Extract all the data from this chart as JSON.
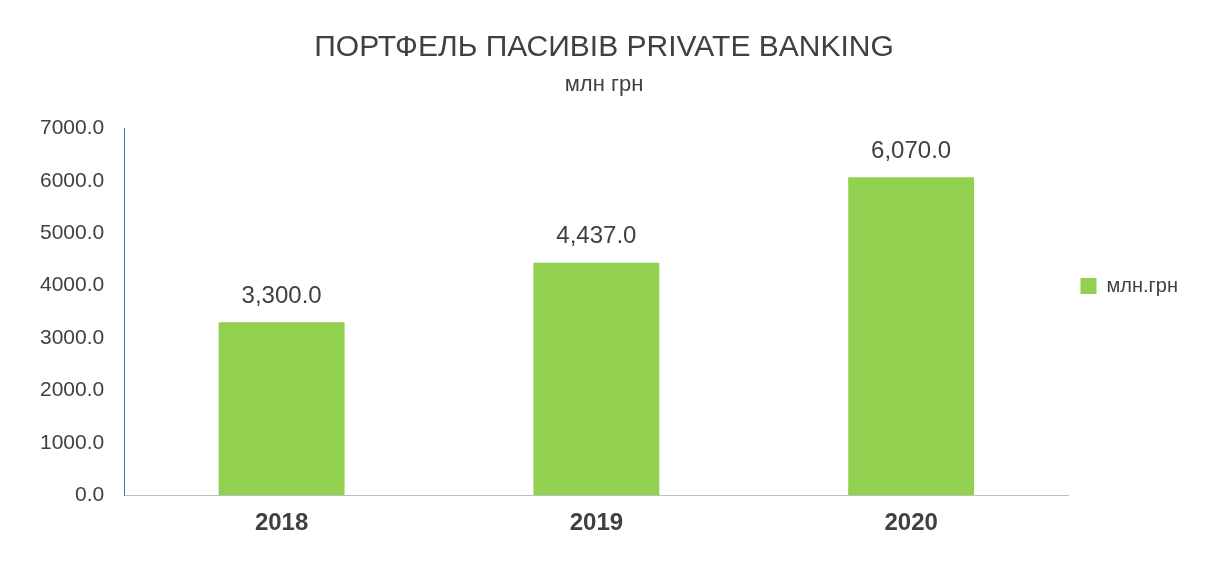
{
  "chart_data": {
    "type": "bar",
    "title": "ПОРТФЕЛЬ ПАСИВІВ PRIVATE BANKING",
    "subtitle": "млн грн",
    "categories": [
      "2018",
      "2019",
      "2020"
    ],
    "series": [
      {
        "name": "млн.грн",
        "color": "#92d050",
        "values": [
          3300,
          4437,
          6070
        ],
        "value_labels": [
          "3,300.0",
          "4,437.0",
          "6,070.0"
        ]
      }
    ],
    "ylim": [
      0,
      7000
    ],
    "yticks": [
      {
        "value": 0,
        "label": "0.0"
      },
      {
        "value": 1000,
        "label": "1000.0"
      },
      {
        "value": 2000,
        "label": "2000.0"
      },
      {
        "value": 3000,
        "label": "3000.0"
      },
      {
        "value": 4000,
        "label": "4000.0"
      },
      {
        "value": 5000,
        "label": "5000.0"
      },
      {
        "value": 6000,
        "label": "6000.0"
      },
      {
        "value": 7000,
        "label": "7000.0"
      }
    ],
    "grid": false,
    "legend": "right"
  }
}
